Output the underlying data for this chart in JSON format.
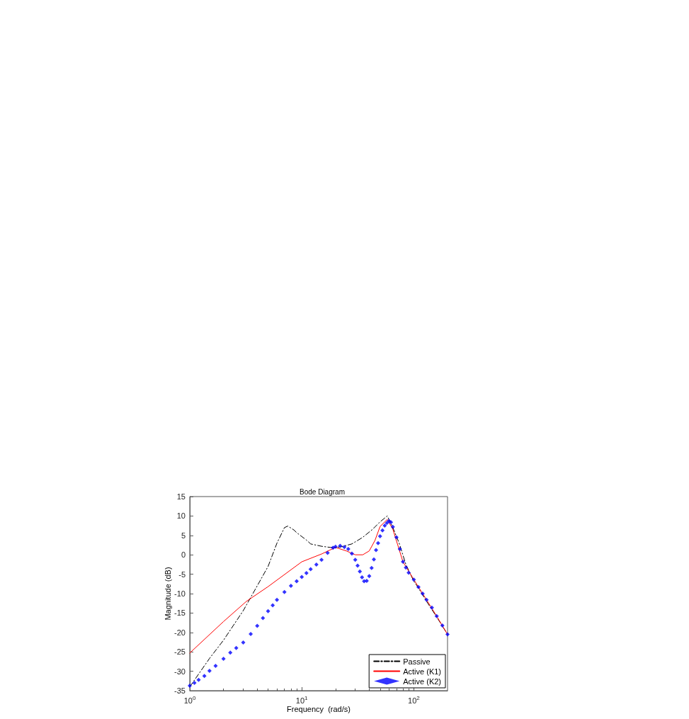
{
  "chart_data": {
    "type": "line",
    "title": "Bode Diagram",
    "xlabel": "Frequency  (rad/s)",
    "ylabel": "Magnitude (dB)",
    "log": "x",
    "xlim": [
      1,
      200
    ],
    "xticks": [
      {
        "value": 1,
        "label": "10$^{0}$"
      },
      {
        "value": 10,
        "label": "10$^{1}$"
      },
      {
        "value": 100,
        "label": "10$^{2}$"
      }
    ],
    "ylim": [
      -35,
      15
    ],
    "yticks": [
      -35,
      -30,
      -25,
      -20,
      -15,
      -10,
      -5,
      0,
      5,
      10,
      15
    ],
    "grid": false,
    "legend": "bottom right",
    "marker": "none",
    "series": [
      {
        "name": "Passive",
        "color": "#000000",
        "line_style": "dashed",
        "x": [
          1,
          1.5,
          2,
          3,
          4,
          5,
          6,
          7,
          7.5,
          8.5,
          9,
          11,
          12,
          15,
          18,
          22,
          28,
          35,
          43,
          50,
          58,
          65,
          74,
          85,
          100,
          107,
          130,
          160,
          200
        ],
        "values": [
          -34,
          -26.7,
          -22,
          -14.4,
          -8,
          -3,
          3,
          7,
          7.4,
          6.4,
          5.7,
          3.8,
          2.8,
          2.2,
          1.9,
          2,
          2.8,
          4.5,
          6.6,
          8.5,
          10,
          7,
          3,
          -2.5,
          -6.8,
          -8,
          -12,
          -16,
          -20.5
        ]
      },
      {
        "name": "Active (K1)",
        "color": "#ff0000",
        "line_style": "solid",
        "x": [
          1,
          2,
          3.2,
          5,
          10,
          15,
          20,
          25,
          30,
          35,
          40,
          45,
          50,
          58,
          65,
          80,
          100,
          130,
          160,
          200
        ],
        "values": [
          -25.3,
          -17.2,
          -12,
          -8.2,
          -1.8,
          0.2,
          1.9,
          1,
          0,
          0,
          1,
          3.7,
          7.3,
          9.1,
          6.6,
          -1.8,
          -6.4,
          -11.6,
          -15.8,
          -20.5
        ]
      },
      {
        "name": "Active (K2)",
        "type": "scatter",
        "marker": "diamond",
        "color": "#0000ff",
        "x": [
          1,
          1.1,
          1.2,
          1.35,
          1.5,
          1.7,
          2,
          2.3,
          2.6,
          3,
          3.5,
          4,
          4.5,
          5,
          5.5,
          6,
          7,
          8,
          9,
          10,
          11,
          12,
          13.5,
          15,
          17,
          19,
          20,
          22,
          24,
          26,
          28,
          30,
          31.5,
          33,
          34.5,
          36,
          38,
          40,
          42,
          44,
          46,
          48,
          50,
          52.5,
          55,
          57.5,
          60,
          62.5,
          65,
          70,
          75,
          80,
          85,
          90,
          100,
          110,
          120,
          130,
          145,
          160,
          180,
          200
        ],
        "values": [
          -33.7,
          -33,
          -32.2,
          -31.2,
          -29.9,
          -28.6,
          -26.8,
          -25.2,
          -24,
          -22.6,
          -20.4,
          -18.3,
          -16.3,
          -14.5,
          -13,
          -11.6,
          -9.6,
          -8,
          -6.8,
          -5.7,
          -4.7,
          -3.7,
          -2.5,
          -1.3,
          0.5,
          1.8,
          2.1,
          2.3,
          2,
          1.5,
          0.3,
          -1.3,
          -2.8,
          -4.3,
          -5.8,
          -6.8,
          -6.7,
          -5.5,
          -3.4,
          -1.2,
          1.2,
          3,
          4.8,
          6.3,
          7.5,
          8.2,
          8.7,
          8.4,
          7.2,
          4.5,
          1.5,
          -1.8,
          -3.3,
          -4.6,
          -6.4,
          -8.3,
          -10,
          -11.6,
          -13.6,
          -15.8,
          -18.2,
          -20.5
        ]
      }
    ]
  }
}
